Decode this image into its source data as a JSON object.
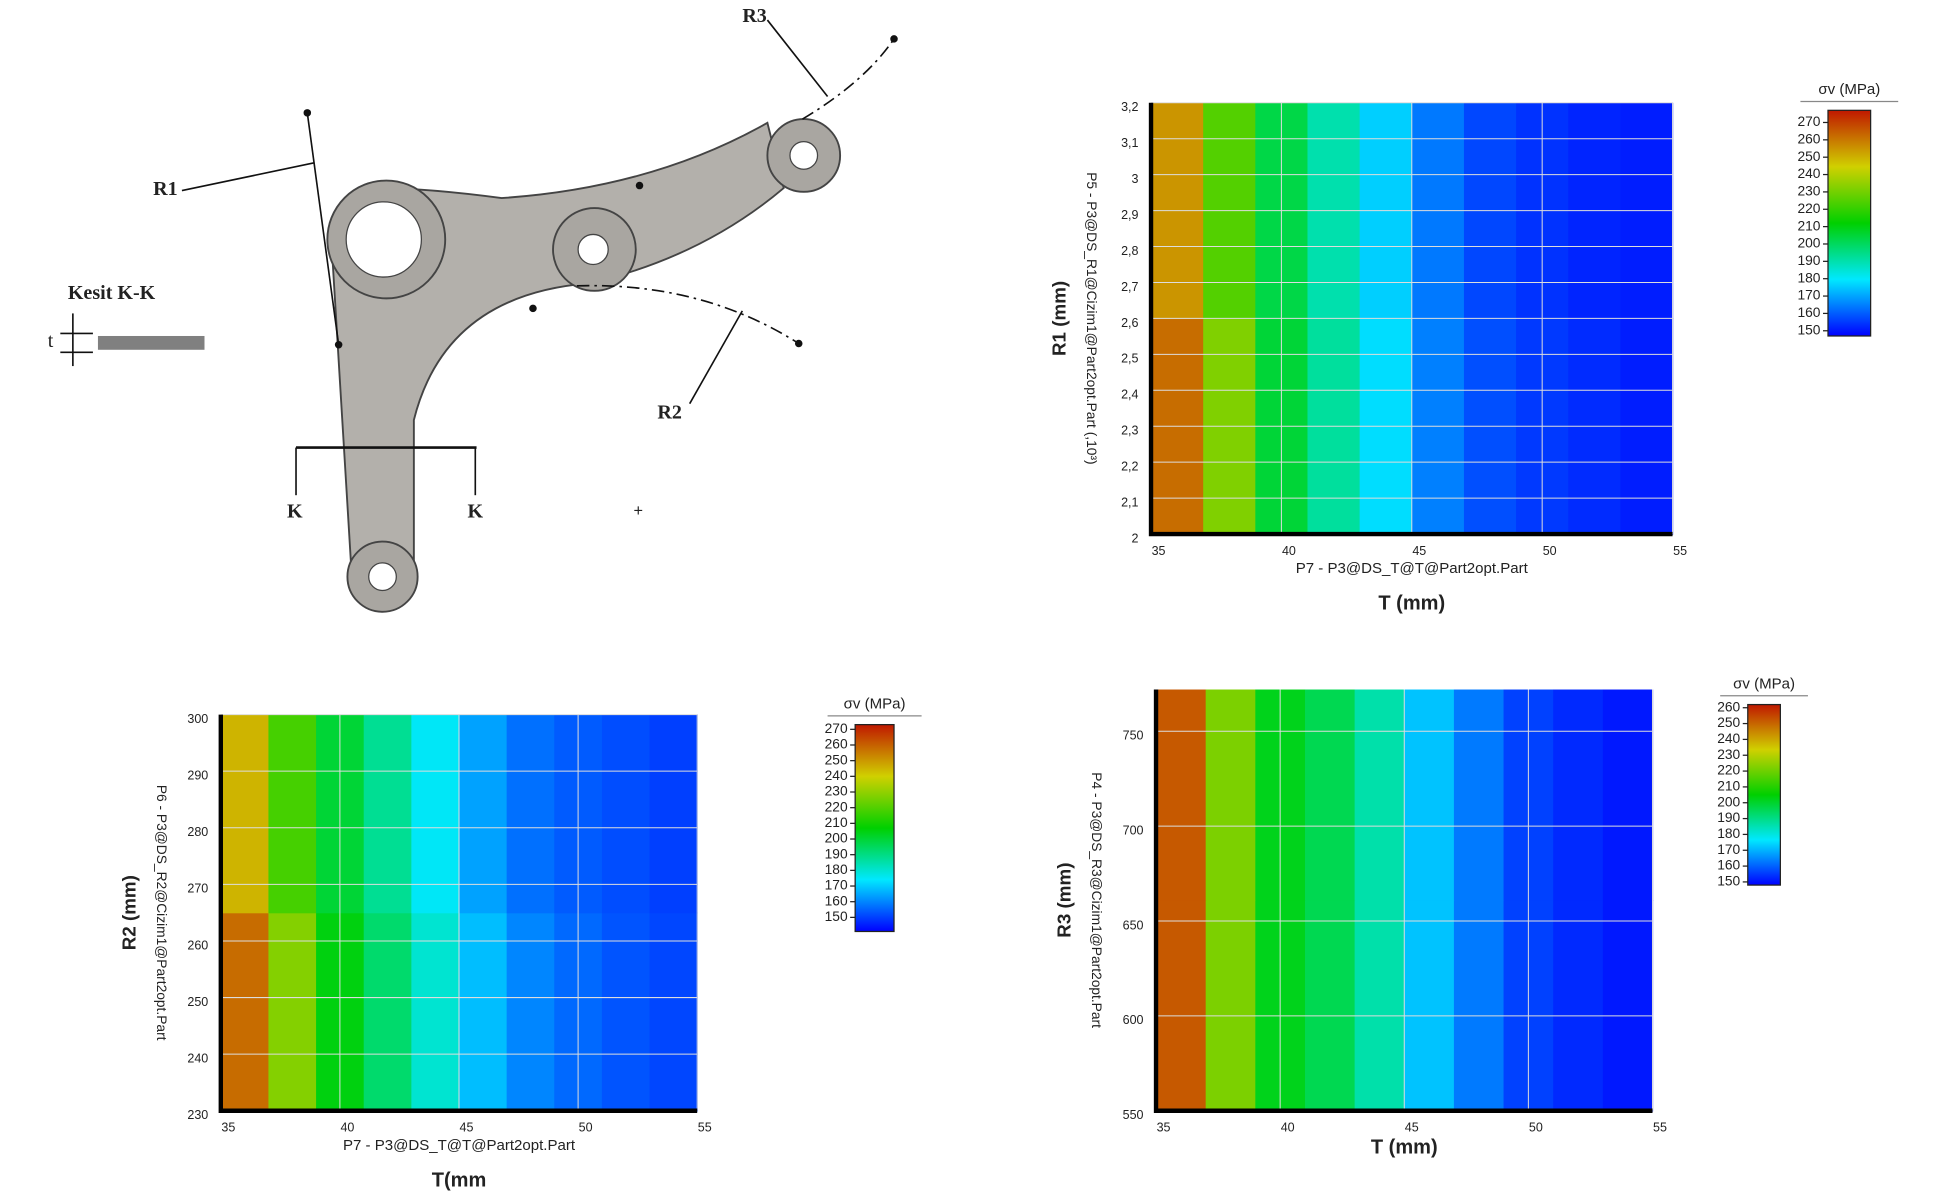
{
  "diagram": {
    "labels": {
      "r1": "R1",
      "r2": "R2",
      "r3": "R3",
      "k_left": "K",
      "k_right": "K",
      "section": "Kesit K-K",
      "t": "t",
      "plus": "+"
    }
  },
  "chart_data": [
    {
      "type": "heatmap",
      "x_label_inner": "P7 - P3@DS_T@T@Part2opt.Part",
      "x_label": "T (mm)",
      "y_label_inner": "P5 - P3@DS_R1@Cizim1@Part2opt.Part  (,10³)",
      "y_label": "R1 (mm)",
      "x": [
        36,
        38,
        40,
        42,
        44,
        46,
        48,
        50,
        52,
        54
      ],
      "y": [
        2.3,
        2.9
      ],
      "z": [
        [
          262,
          232,
          205,
          192,
          178,
          165,
          158,
          155,
          153,
          151
        ],
        [
          255,
          225,
          203,
          190,
          176,
          164,
          157,
          154,
          152,
          151
        ]
      ],
      "xlim": [
        35,
        55
      ],
      "ylim": [
        2,
        3.2
      ],
      "xticks": [
        35,
        40,
        45,
        50,
        55
      ],
      "yticks": [
        2,
        {
          "value": 2.1,
          "label": "2,1"
        },
        {
          "value": 2.2,
          "label": "2,2"
        },
        {
          "value": 2.3,
          "label": "2,3"
        },
        {
          "value": 2.4,
          "label": "2,4"
        },
        {
          "value": 2.5,
          "label": "2,5"
        },
        {
          "value": 2.6,
          "label": "2,6"
        },
        {
          "value": 2.7,
          "label": "2,7"
        },
        {
          "value": 2.8,
          "label": "2,8"
        },
        {
          "value": 2.9,
          "label": "2,9"
        },
        3,
        {
          "value": 3.1,
          "label": "3,1"
        },
        {
          "value": 3.2,
          "label": "3,2"
        }
      ],
      "grid": true,
      "colormap": [
        "#0000ff",
        "#00e8ff",
        "#00d000",
        "#d0d000",
        "#c01800"
      ],
      "colorbar": {
        "title": "σv (MPa)",
        "lim": [
          147,
          277
        ],
        "ticks": [
          150,
          160,
          170,
          180,
          190,
          200,
          210,
          220,
          230,
          240,
          250,
          260,
          270
        ]
      }
    },
    {
      "type": "heatmap",
      "x_label_inner": "P7 - P3@DS_T@T@Part2opt.Part",
      "x_label": "T(mm",
      "y_label_inner": "P6 - P3@DS_R2@Cizim1@Part2opt.Part",
      "y_label": "R2 (mm)",
      "x": [
        36,
        38,
        40,
        42,
        44,
        46,
        48,
        50,
        52,
        54
      ],
      "y": [
        247.5,
        282.5
      ],
      "z": [
        [
          258,
          228,
          205,
          193,
          180,
          168,
          160,
          156,
          153,
          151
        ],
        [
          245,
          218,
          200,
          188,
          175,
          164,
          157,
          154,
          152,
          150
        ]
      ],
      "xlim": [
        35,
        55
      ],
      "ylim": [
        230,
        300
      ],
      "xticks": [
        35,
        40,
        45,
        50,
        55
      ],
      "yticks": [
        230,
        240,
        250,
        260,
        270,
        280,
        290,
        300
      ],
      "grid": true,
      "colormap": [
        "#0000ff",
        "#00e8ff",
        "#00d000",
        "#d0d000",
        "#c01800"
      ],
      "colorbar": {
        "title": "σv (MPa)",
        "lim": [
          141,
          273
        ],
        "ticks": [
          150,
          160,
          170,
          180,
          190,
          200,
          210,
          220,
          230,
          240,
          250,
          260,
          270
        ]
      }
    },
    {
      "type": "heatmap",
      "x_label": "T (mm)",
      "y_label_inner": "P4 - P3@DS_R3@Cizim1@Part2opt.Part",
      "y_label": "R3 (mm)",
      "x": [
        36,
        38,
        40,
        42,
        44,
        46,
        48,
        50,
        52,
        54
      ],
      "y": [
        605,
        717
      ],
      "z": [
        [
          252,
          222,
          202,
          196,
          186,
          172,
          163,
          156,
          153,
          151
        ],
        [
          252,
          222,
          202,
          196,
          186,
          172,
          163,
          156,
          153,
          151
        ]
      ],
      "xlim": [
        35,
        55
      ],
      "ylim": [
        550,
        772
      ],
      "xticks": [
        35,
        40,
        45,
        50,
        55
      ],
      "yticks": [
        550,
        600,
        650,
        700,
        750
      ],
      "grid": true,
      "colormap": [
        "#0000ff",
        "#00e8ff",
        "#00d000",
        "#d0d000",
        "#c01800"
      ],
      "colorbar": {
        "title": "σv (MPa)",
        "lim": [
          148,
          262
        ],
        "ticks": [
          150,
          160,
          170,
          180,
          190,
          200,
          210,
          220,
          230,
          240,
          250,
          260
        ]
      }
    }
  ]
}
